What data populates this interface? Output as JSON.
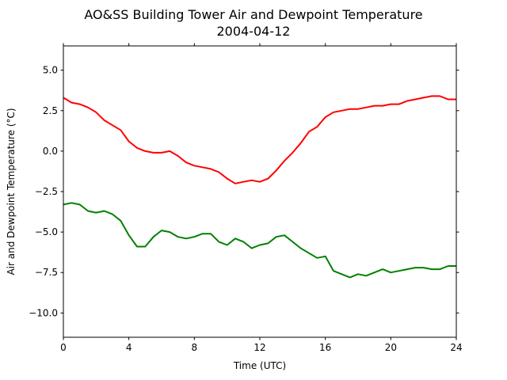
{
  "chart_data": {
    "type": "line",
    "title": "AO&SS Building Tower Air and Dewpoint Temperature",
    "subtitle": "2004-04-12",
    "xlabel": "Time (UTC)",
    "ylabel": "Air and Dewpoint Temperature (°C)",
    "xlim": [
      0,
      24
    ],
    "ylim": [
      -11.5,
      6.5
    ],
    "xticks": [
      0,
      4,
      8,
      12,
      16,
      20,
      24
    ],
    "xtick_labels": [
      "0",
      "4",
      "8",
      "12",
      "16",
      "20",
      "24"
    ],
    "yticks": [
      -10.0,
      -7.5,
      -5.0,
      -2.5,
      0.0,
      2.5,
      5.0
    ],
    "ytick_labels": [
      "−10.0",
      "−7.5",
      "−5.0",
      "−2.5",
      "0.0",
      "2.5",
      "5.0"
    ],
    "grid": false,
    "series": [
      {
        "color": "#ff0000",
        "x": [
          0,
          0.5,
          1,
          1.5,
          2,
          2.5,
          3,
          3.5,
          4,
          4.5,
          5,
          5.5,
          6,
          6.5,
          7,
          7.5,
          8,
          8.5,
          9,
          9.5,
          10,
          10.5,
          11,
          11.5,
          12,
          12.5,
          13,
          13.5,
          14,
          14.5,
          15,
          15.5,
          16,
          16.5,
          17,
          17.5,
          18,
          18.5,
          19,
          19.5,
          20,
          20.5,
          21,
          21.5,
          22,
          22.5,
          23,
          23.5,
          24
        ],
        "y": [
          3.3,
          3.0,
          2.9,
          2.7,
          2.4,
          1.9,
          1.6,
          1.3,
          0.6,
          0.2,
          0.0,
          -0.1,
          -0.1,
          0.0,
          -0.3,
          -0.7,
          -0.9,
          -1.0,
          -1.1,
          -1.3,
          -1.7,
          -2.0,
          -1.9,
          -1.8,
          -1.9,
          -1.7,
          -1.2,
          -0.6,
          -0.1,
          0.5,
          1.2,
          1.5,
          2.1,
          2.4,
          2.5,
          2.6,
          2.6,
          2.7,
          2.8,
          2.8,
          2.9,
          2.9,
          3.1,
          3.2,
          3.3,
          3.4,
          3.4,
          3.2,
          3.2
        ]
      },
      {
        "color": "#008000",
        "x": [
          0,
          0.5,
          1,
          1.5,
          2,
          2.5,
          3,
          3.5,
          4,
          4.5,
          5,
          5.5,
          6,
          6.5,
          7,
          7.5,
          8,
          8.5,
          9,
          9.5,
          10,
          10.5,
          11,
          11.5,
          12,
          12.5,
          13,
          13.5,
          14,
          14.5,
          15,
          15.5,
          16,
          16.5,
          17,
          17.5,
          18,
          18.5,
          19,
          19.5,
          20,
          20.5,
          21,
          21.5,
          22,
          22.5,
          23,
          23.5,
          24
        ],
        "y": [
          -3.3,
          -3.2,
          -3.3,
          -3.7,
          -3.8,
          -3.7,
          -3.9,
          -4.3,
          -5.2,
          -5.9,
          -5.9,
          -5.3,
          -4.9,
          -5.0,
          -5.3,
          -5.4,
          -5.3,
          -5.1,
          -5.1,
          -5.6,
          -5.8,
          -5.4,
          -5.6,
          -6.0,
          -5.8,
          -5.7,
          -5.3,
          -5.2,
          -5.6,
          -6.0,
          -6.3,
          -6.6,
          -6.5,
          -7.4,
          -7.6,
          -7.8,
          -7.6,
          -7.7,
          -7.5,
          -7.3,
          -7.5,
          -7.4,
          -7.3,
          -7.2,
          -7.2,
          -7.3,
          -7.3,
          -7.1,
          -7.1
        ]
      }
    ]
  }
}
